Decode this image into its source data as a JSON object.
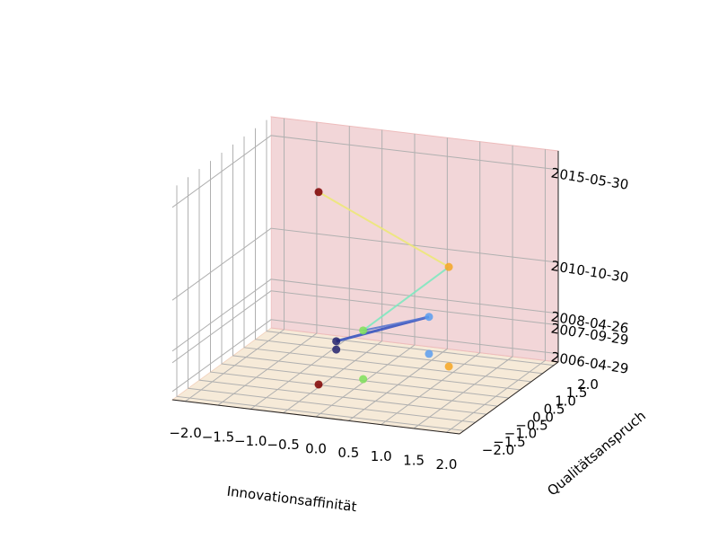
{
  "chart_data": {
    "type": "line3d",
    "xlabel": "Innovationsaffinität",
    "ylabel": "Qualitätsanspruch",
    "x": [
      -0.95,
      0.35,
      -0.06,
      0.84,
      -0.55
    ],
    "y": [
      1.47,
      1.82,
      0.08,
      1.28,
      -0.48
    ],
    "z": [
      "2006-04-29",
      "2007-09-29",
      "2008-04-26",
      "2010-10-30",
      "2015-05-30"
    ],
    "point_colors": [
      "#22226e",
      "#5b9ef0",
      "#7ee05a",
      "#f5a623",
      "#7f0000"
    ],
    "segment_colors": [
      "#3a55c0",
      "#5a78d0",
      "#7fe8c0",
      "#ece878"
    ],
    "xlim": [
      -2.2,
      2.2
    ],
    "ylim": [
      -2.2,
      2.2
    ],
    "zlim": [
      "2005-12-01",
      "2016-05-01"
    ],
    "xticks": [
      {
        "value": -2.0,
        "label": "−2.0"
      },
      {
        "value": -1.5,
        "label": "−1.5"
      },
      {
        "value": -1.0,
        "label": "−1.0"
      },
      {
        "value": -0.5,
        "label": "−0.5"
      },
      {
        "value": 0.0,
        "label": "0.0"
      },
      {
        "value": 0.5,
        "label": "0.5"
      },
      {
        "value": 1.0,
        "label": "1.0"
      },
      {
        "value": 1.5,
        "label": "1.5"
      },
      {
        "value": 2.0,
        "label": "2.0"
      }
    ],
    "yticks": [
      {
        "value": -2.0,
        "label": "−2.0"
      },
      {
        "value": -1.5,
        "label": "−1.5"
      },
      {
        "value": -1.0,
        "label": "−1.0"
      },
      {
        "value": -0.5,
        "label": "−0.5"
      },
      {
        "value": 0.0,
        "label": "0.0"
      },
      {
        "value": 0.5,
        "label": "0.5"
      },
      {
        "value": 1.0,
        "label": "1.0"
      },
      {
        "value": 1.5,
        "label": "1.5"
      },
      {
        "value": 2.0,
        "label": "2.0"
      }
    ],
    "zticks": [
      "2006-04-29",
      "2007-09-29",
      "2008-04-26",
      "2010-10-30",
      "2015-05-30"
    ],
    "grid": true
  }
}
